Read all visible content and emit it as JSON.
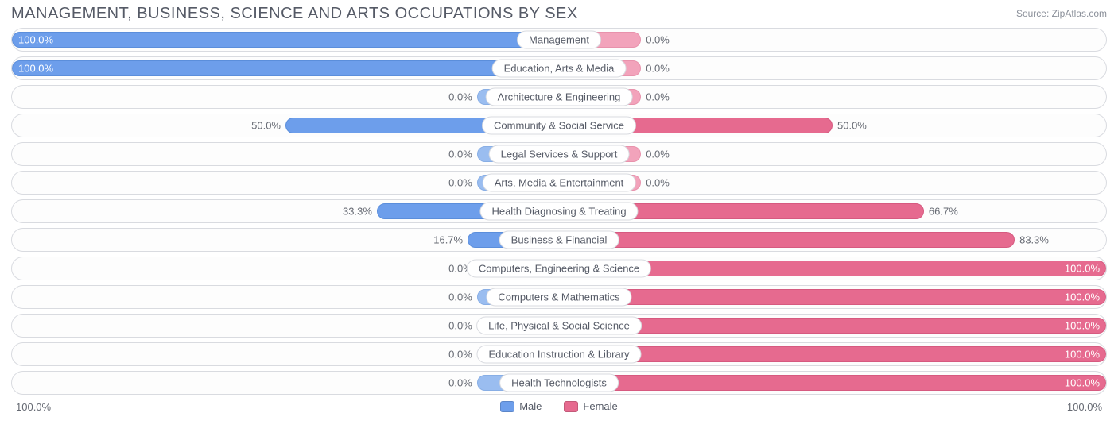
{
  "title": "MANAGEMENT, BUSINESS, SCIENCE AND ARTS OCCUPATIONS BY SEX",
  "source_label": "Source: ZipAtlas.com",
  "axis": {
    "left": "100.0%",
    "right": "100.0%"
  },
  "legend": {
    "male": {
      "label": "Male",
      "color": "#6d9eeb"
    },
    "female": {
      "label": "Female",
      "color": "#e66a8f"
    }
  },
  "colors": {
    "male_bar": "#6d9eeb",
    "male_stub": "#9abdf0",
    "female_bar": "#e66a8f",
    "female_stub": "#f2a3bb",
    "row_border": "#d9dbe0",
    "text": "#555a66",
    "text_muted": "#666a73",
    "background": "#ffffff"
  },
  "stub_width_pct": 15,
  "rows": [
    {
      "category": "Management",
      "male": 100.0,
      "female": 0.0,
      "male_label": "100.0%",
      "female_label": "0.0%"
    },
    {
      "category": "Education, Arts & Media",
      "male": 100.0,
      "female": 0.0,
      "male_label": "100.0%",
      "female_label": "0.0%"
    },
    {
      "category": "Architecture & Engineering",
      "male": 0.0,
      "female": 0.0,
      "male_label": "0.0%",
      "female_label": "0.0%"
    },
    {
      "category": "Community & Social Service",
      "male": 50.0,
      "female": 50.0,
      "male_label": "50.0%",
      "female_label": "50.0%"
    },
    {
      "category": "Legal Services & Support",
      "male": 0.0,
      "female": 0.0,
      "male_label": "0.0%",
      "female_label": "0.0%"
    },
    {
      "category": "Arts, Media & Entertainment",
      "male": 0.0,
      "female": 0.0,
      "male_label": "0.0%",
      "female_label": "0.0%"
    },
    {
      "category": "Health Diagnosing & Treating",
      "male": 33.3,
      "female": 66.7,
      "male_label": "33.3%",
      "female_label": "66.7%"
    },
    {
      "category": "Business & Financial",
      "male": 16.7,
      "female": 83.3,
      "male_label": "16.7%",
      "female_label": "83.3%"
    },
    {
      "category": "Computers, Engineering & Science",
      "male": 0.0,
      "female": 100.0,
      "male_label": "0.0%",
      "female_label": "100.0%"
    },
    {
      "category": "Computers & Mathematics",
      "male": 0.0,
      "female": 100.0,
      "male_label": "0.0%",
      "female_label": "100.0%"
    },
    {
      "category": "Life, Physical & Social Science",
      "male": 0.0,
      "female": 100.0,
      "male_label": "0.0%",
      "female_label": "100.0%"
    },
    {
      "category": "Education Instruction & Library",
      "male": 0.0,
      "female": 100.0,
      "male_label": "0.0%",
      "female_label": "100.0%"
    },
    {
      "category": "Health Technologists",
      "male": 0.0,
      "female": 100.0,
      "male_label": "0.0%",
      "female_label": "100.0%"
    }
  ]
}
